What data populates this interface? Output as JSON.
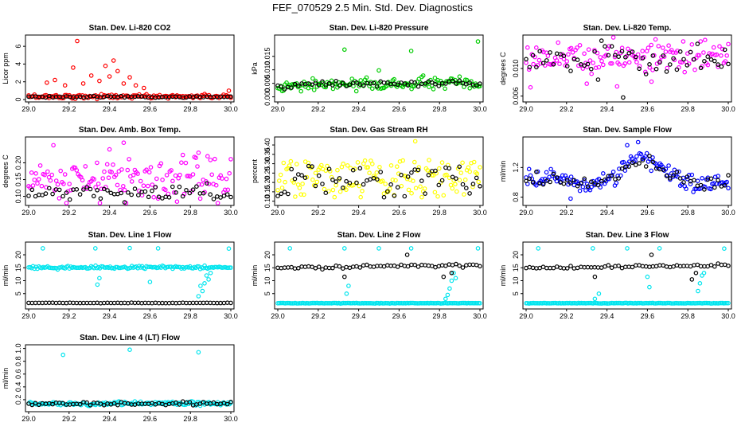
{
  "figure_title": "FEF_070529  2.5 Min. Std. Dev. Diagnostics",
  "colors": {
    "primary_black": "#000000",
    "red": "#ff0000",
    "green": "#00cc00",
    "magenta": "#ff00ff",
    "yellow": "#ffff00",
    "blue": "#0000ff",
    "cyan": "#00e5ee"
  },
  "chart_data": [
    {
      "id": "li820-co2",
      "type": "scatter",
      "title": "Stan. Dev. Li-820 CO2",
      "ylabel": "Licor ppm",
      "xlim": [
        29.0,
        30.0
      ],
      "ylim": [
        0,
        7
      ],
      "x_ticks": [
        "29.0",
        "29.2",
        "29.4",
        "29.6",
        "29.8",
        "30.0"
      ],
      "y_ticks": [
        "0",
        "2",
        "4",
        "6"
      ],
      "y_tick_values": [
        0,
        2,
        4,
        6
      ],
      "series": [
        {
          "name": "red",
          "color": "#ff0000",
          "pattern": "band",
          "base": 0.35,
          "noise": 0.12,
          "spikes": [
            [
              29.09,
              1.9
            ],
            [
              29.13,
              2.2
            ],
            [
              29.18,
              1.6
            ],
            [
              29.22,
              3.6
            ],
            [
              29.24,
              6.6
            ],
            [
              29.27,
              1.8
            ],
            [
              29.31,
              2.7
            ],
            [
              29.35,
              2.1
            ],
            [
              29.38,
              3.8
            ],
            [
              29.4,
              2.6
            ],
            [
              29.42,
              4.4
            ],
            [
              29.44,
              3.2
            ],
            [
              29.47,
              1.8
            ],
            [
              29.5,
              2.5
            ],
            [
              29.53,
              1.6
            ],
            [
              29.57,
              1.3
            ],
            [
              29.99,
              1.0
            ]
          ]
        },
        {
          "name": "black",
          "color": "#000000",
          "pattern": "band",
          "base": 0.3,
          "noise": 0.05,
          "spikes": []
        }
      ]
    },
    {
      "id": "li820-pressure",
      "type": "scatter",
      "title": "Stan. Dev. Li-820 Pressure",
      "ylabel": "kPa",
      "xlim": [
        29.0,
        30.0
      ],
      "ylim": [
        -0.001,
        0.022
      ],
      "x_ticks": [
        "29.0",
        "29.2",
        "29.4",
        "29.6",
        "29.8",
        "30.0"
      ],
      "y_ticks": [
        "0.000",
        "0.005",
        "0.010",
        "0.015"
      ],
      "y_tick_values": [
        0,
        0.005,
        0.01,
        0.015
      ],
      "series": [
        {
          "name": "green",
          "color": "#00cc00",
          "pattern": "wave",
          "base": 0.0035,
          "amp": 0.0015,
          "noise": 0.0011,
          "spikes": [
            [
              29.33,
              0.0175
            ],
            [
              29.66,
              0.017
            ],
            [
              29.99,
              0.0205
            ],
            [
              29.5,
              0.0098
            ]
          ]
        },
        {
          "name": "black",
          "color": "#000000",
          "pattern": "wave",
          "base": 0.004,
          "amp": 0.0012,
          "noise": 0.0006,
          "spikes": []
        }
      ]
    },
    {
      "id": "li820-temp",
      "type": "scatter",
      "title": "Stan. Dev. Li-820 Temp.",
      "ylabel": "degrees C",
      "xlim": [
        29.0,
        30.0
      ],
      "ylim": [
        0.0055,
        0.0145
      ],
      "x_ticks": [
        "29.0",
        "29.2",
        "29.4",
        "29.6",
        "29.8",
        "30.0"
      ],
      "y_ticks": [
        "0.006",
        "0.010"
      ],
      "y_tick_values": [
        0.006,
        0.01
      ],
      "series": [
        {
          "name": "magenta",
          "color": "#ff00ff",
          "pattern": "band",
          "base": 0.0118,
          "noise": 0.0013,
          "spikes": [
            [
              29.3,
              0.0078
            ],
            [
              29.45,
              0.0074
            ],
            [
              29.62,
              0.0081
            ]
          ]
        },
        {
          "name": "black",
          "color": "#000000",
          "pattern": "band",
          "base": 0.0113,
          "noise": 0.0012,
          "spikes": [
            [
              29.48,
              0.0058
            ]
          ]
        }
      ]
    },
    {
      "id": "amb-box-temp",
      "type": "scatter",
      "title": "Stan. Dev. Amb. Box Temp.",
      "ylabel": "degrees C",
      "xlim": [
        29.0,
        30.0
      ],
      "ylim": [
        0.08,
        0.27
      ],
      "x_ticks": [
        "29.0",
        "29.2",
        "29.4",
        "29.6",
        "29.8",
        "30.0"
      ],
      "y_ticks": [
        "0.10",
        "0.15",
        "0.20"
      ],
      "y_tick_values": [
        0.1,
        0.15,
        0.2
      ],
      "series": [
        {
          "name": "magenta",
          "color": "#ff00ff",
          "pattern": "band",
          "base": 0.15,
          "noise": 0.035,
          "spikes": [
            [
              29.47,
              0.26
            ],
            [
              29.4,
              0.24
            ],
            [
              29.84,
              0.23
            ]
          ]
        },
        {
          "name": "black",
          "color": "#000000",
          "pattern": "band",
          "base": 0.11,
          "noise": 0.012,
          "spikes": []
        }
      ]
    },
    {
      "id": "gas-stream-rh",
      "type": "scatter",
      "title": "Stan. Dev. Gas Stream RH",
      "ylabel": "percent",
      "xlim": [
        29.0,
        30.0
      ],
      "ylim": [
        0.09,
        0.43
      ],
      "x_ticks": [
        "29.0",
        "29.2",
        "29.4",
        "29.6",
        "29.8",
        "30.0"
      ],
      "y_ticks": [
        "0.10",
        "0.15",
        "0.20",
        "0.25",
        "0.30",
        "0.35",
        "0.40"
      ],
      "y_tick_values": [
        0.1,
        0.15,
        0.2,
        0.25,
        0.3,
        0.35,
        0.4
      ],
      "series": [
        {
          "name": "yellow",
          "color": "#ffff00",
          "pattern": "spread",
          "base": 0.22,
          "noise": 0.1,
          "spikes": [
            [
              29.68,
              0.42
            ]
          ]
        },
        {
          "name": "black",
          "color": "#000000",
          "pattern": "spread",
          "base": 0.2,
          "noise": 0.09,
          "spikes": []
        }
      ]
    },
    {
      "id": "sample-flow",
      "type": "scatter",
      "title": "Stan. Dev. Sample Flow",
      "ylabel": "ml/min",
      "xlim": [
        29.0,
        30.0
      ],
      "ylim": [
        0.72,
        1.58
      ],
      "x_ticks": [
        "29.0",
        "29.2",
        "29.4",
        "29.6",
        "29.8",
        "30.0"
      ],
      "y_ticks": [
        "0.8",
        "1.2"
      ],
      "y_tick_values": [
        0.8,
        1.2
      ],
      "series": [
        {
          "name": "blue",
          "color": "#0000ff",
          "pattern": "hump",
          "base": 1.02,
          "amp": 0.3,
          "noise": 0.07,
          "spikes": [
            [
              29.5,
              1.5
            ],
            [
              29.22,
              0.78
            ]
          ]
        },
        {
          "name": "black",
          "color": "#000000",
          "pattern": "hump",
          "base": 1.0,
          "amp": 0.25,
          "noise": 0.05,
          "spikes": []
        }
      ]
    },
    {
      "id": "line1-flow",
      "type": "scatter",
      "title": "Stan. Dev. Line 1 Flow",
      "ylabel": "ml/min",
      "xlim": [
        29.0,
        30.0
      ],
      "ylim": [
        0,
        24
      ],
      "x_ticks": [
        "29.0",
        "29.2",
        "29.4",
        "29.6",
        "29.8",
        "30.0"
      ],
      "y_ticks": [
        "5",
        "10",
        "15",
        "20"
      ],
      "y_tick_values": [
        5,
        10,
        15,
        20
      ],
      "series": [
        {
          "name": "cyan",
          "color": "#00e5ee",
          "pattern": "band",
          "base": 15.1,
          "noise": 0.3,
          "spikes": [
            [
              29.07,
              22.5
            ],
            [
              29.33,
              22.5
            ],
            [
              29.5,
              22.6
            ],
            [
              29.64,
              22.5
            ],
            [
              29.99,
              22.4
            ],
            [
              29.34,
              8.5
            ],
            [
              29.35,
              11
            ],
            [
              29.6,
              9.5
            ],
            [
              29.84,
              4
            ],
            [
              29.86,
              6
            ],
            [
              29.87,
              9
            ],
            [
              29.88,
              12
            ],
            [
              29.89,
              10.5
            ],
            [
              29.9,
              13
            ],
            [
              29.85,
              8
            ]
          ]
        },
        {
          "name": "black",
          "color": "#000000",
          "pattern": "band",
          "base": 1.4,
          "noise": 0.05,
          "spikes": []
        }
      ]
    },
    {
      "id": "line2-flow",
      "type": "scatter",
      "title": "Stan. Dev. Line 2 Flow",
      "ylabel": "ml/min",
      "xlim": [
        29.0,
        30.0
      ],
      "ylim": [
        0,
        24
      ],
      "x_ticks": [
        "29.0",
        "29.2",
        "29.4",
        "29.6",
        "29.8",
        "30.0"
      ],
      "y_ticks": [
        "5",
        "10",
        "15",
        "20"
      ],
      "y_tick_values": [
        5,
        10,
        15,
        20
      ],
      "series": [
        {
          "name": "cyan",
          "color": "#00e5ee",
          "pattern": "band",
          "base": 1.3,
          "noise": 0.05,
          "spikes": [
            [
              29.06,
              22.5
            ],
            [
              29.33,
              22.5
            ],
            [
              29.5,
              22.5
            ],
            [
              29.66,
              22.5
            ],
            [
              29.99,
              22.5
            ],
            [
              29.34,
              5
            ],
            [
              29.35,
              8
            ],
            [
              29.83,
              3
            ],
            [
              29.84,
              4.5
            ],
            [
              29.85,
              7
            ],
            [
              29.86,
              10
            ],
            [
              29.87,
              13
            ],
            [
              29.88,
              11
            ]
          ]
        },
        {
          "name": "black",
          "color": "#000000",
          "pattern": "ramp",
          "base": 15.0,
          "amp": 1.2,
          "noise": 0.35,
          "spikes": [
            [
              29.33,
              11.5
            ],
            [
              29.64,
              20
            ],
            [
              29.82,
              11.5
            ],
            [
              29.86,
              13
            ]
          ]
        }
      ]
    },
    {
      "id": "line3-flow",
      "type": "scatter",
      "title": "Stan. Dev. Line 3 Flow",
      "ylabel": "ml/min",
      "xlim": [
        29.0,
        30.0
      ],
      "ylim": [
        0,
        24
      ],
      "x_ticks": [
        "29.0",
        "29.2",
        "29.4",
        "29.6",
        "29.8",
        "30.0"
      ],
      "y_ticks": [
        "5",
        "10",
        "15",
        "20"
      ],
      "y_tick_values": [
        5,
        10,
        15,
        20
      ],
      "series": [
        {
          "name": "cyan",
          "color": "#00e5ee",
          "pattern": "band",
          "base": 1.3,
          "noise": 0.05,
          "spikes": [
            [
              29.06,
              22.5
            ],
            [
              29.33,
              22.5
            ],
            [
              29.5,
              22.5
            ],
            [
              29.66,
              22.5
            ],
            [
              29.98,
              22.4
            ],
            [
              29.34,
              3
            ],
            [
              29.36,
              5
            ],
            [
              29.6,
              11.5
            ],
            [
              29.61,
              7.5
            ],
            [
              29.85,
              6
            ],
            [
              29.86,
              9
            ],
            [
              29.87,
              12
            ],
            [
              29.88,
              13
            ]
          ]
        },
        {
          "name": "black",
          "color": "#000000",
          "pattern": "ramp",
          "base": 15.0,
          "amp": 1.0,
          "noise": 0.3,
          "spikes": [
            [
              29.34,
              11.5
            ],
            [
              29.62,
              20
            ],
            [
              29.82,
              10.5
            ],
            [
              29.84,
              13
            ]
          ]
        }
      ]
    },
    {
      "id": "line4-flow",
      "type": "scatter",
      "title": "Stan. Dev. Line 4 (LT) Flow",
      "ylabel": "ml/min",
      "xlim": [
        29.0,
        30.0
      ],
      "ylim": [
        0.05,
        1.02
      ],
      "x_ticks": [
        "29.0",
        "29.2",
        "29.4",
        "29.6",
        "29.8",
        "30.0"
      ],
      "y_ticks": [
        "0.2",
        "0.4",
        "0.6",
        "0.8",
        "1.0"
      ],
      "y_tick_values": [
        0.2,
        0.4,
        0.6,
        0.8,
        1.0
      ],
      "series": [
        {
          "name": "cyan",
          "color": "#00e5ee",
          "pattern": "band",
          "base": 0.14,
          "noise": 0.015,
          "spikes": [
            [
              29.17,
              0.9
            ],
            [
              29.5,
              0.98
            ],
            [
              29.84,
              0.94
            ]
          ]
        },
        {
          "name": "black",
          "color": "#000000",
          "pattern": "band",
          "base": 0.14,
          "noise": 0.012,
          "spikes": []
        }
      ]
    }
  ]
}
